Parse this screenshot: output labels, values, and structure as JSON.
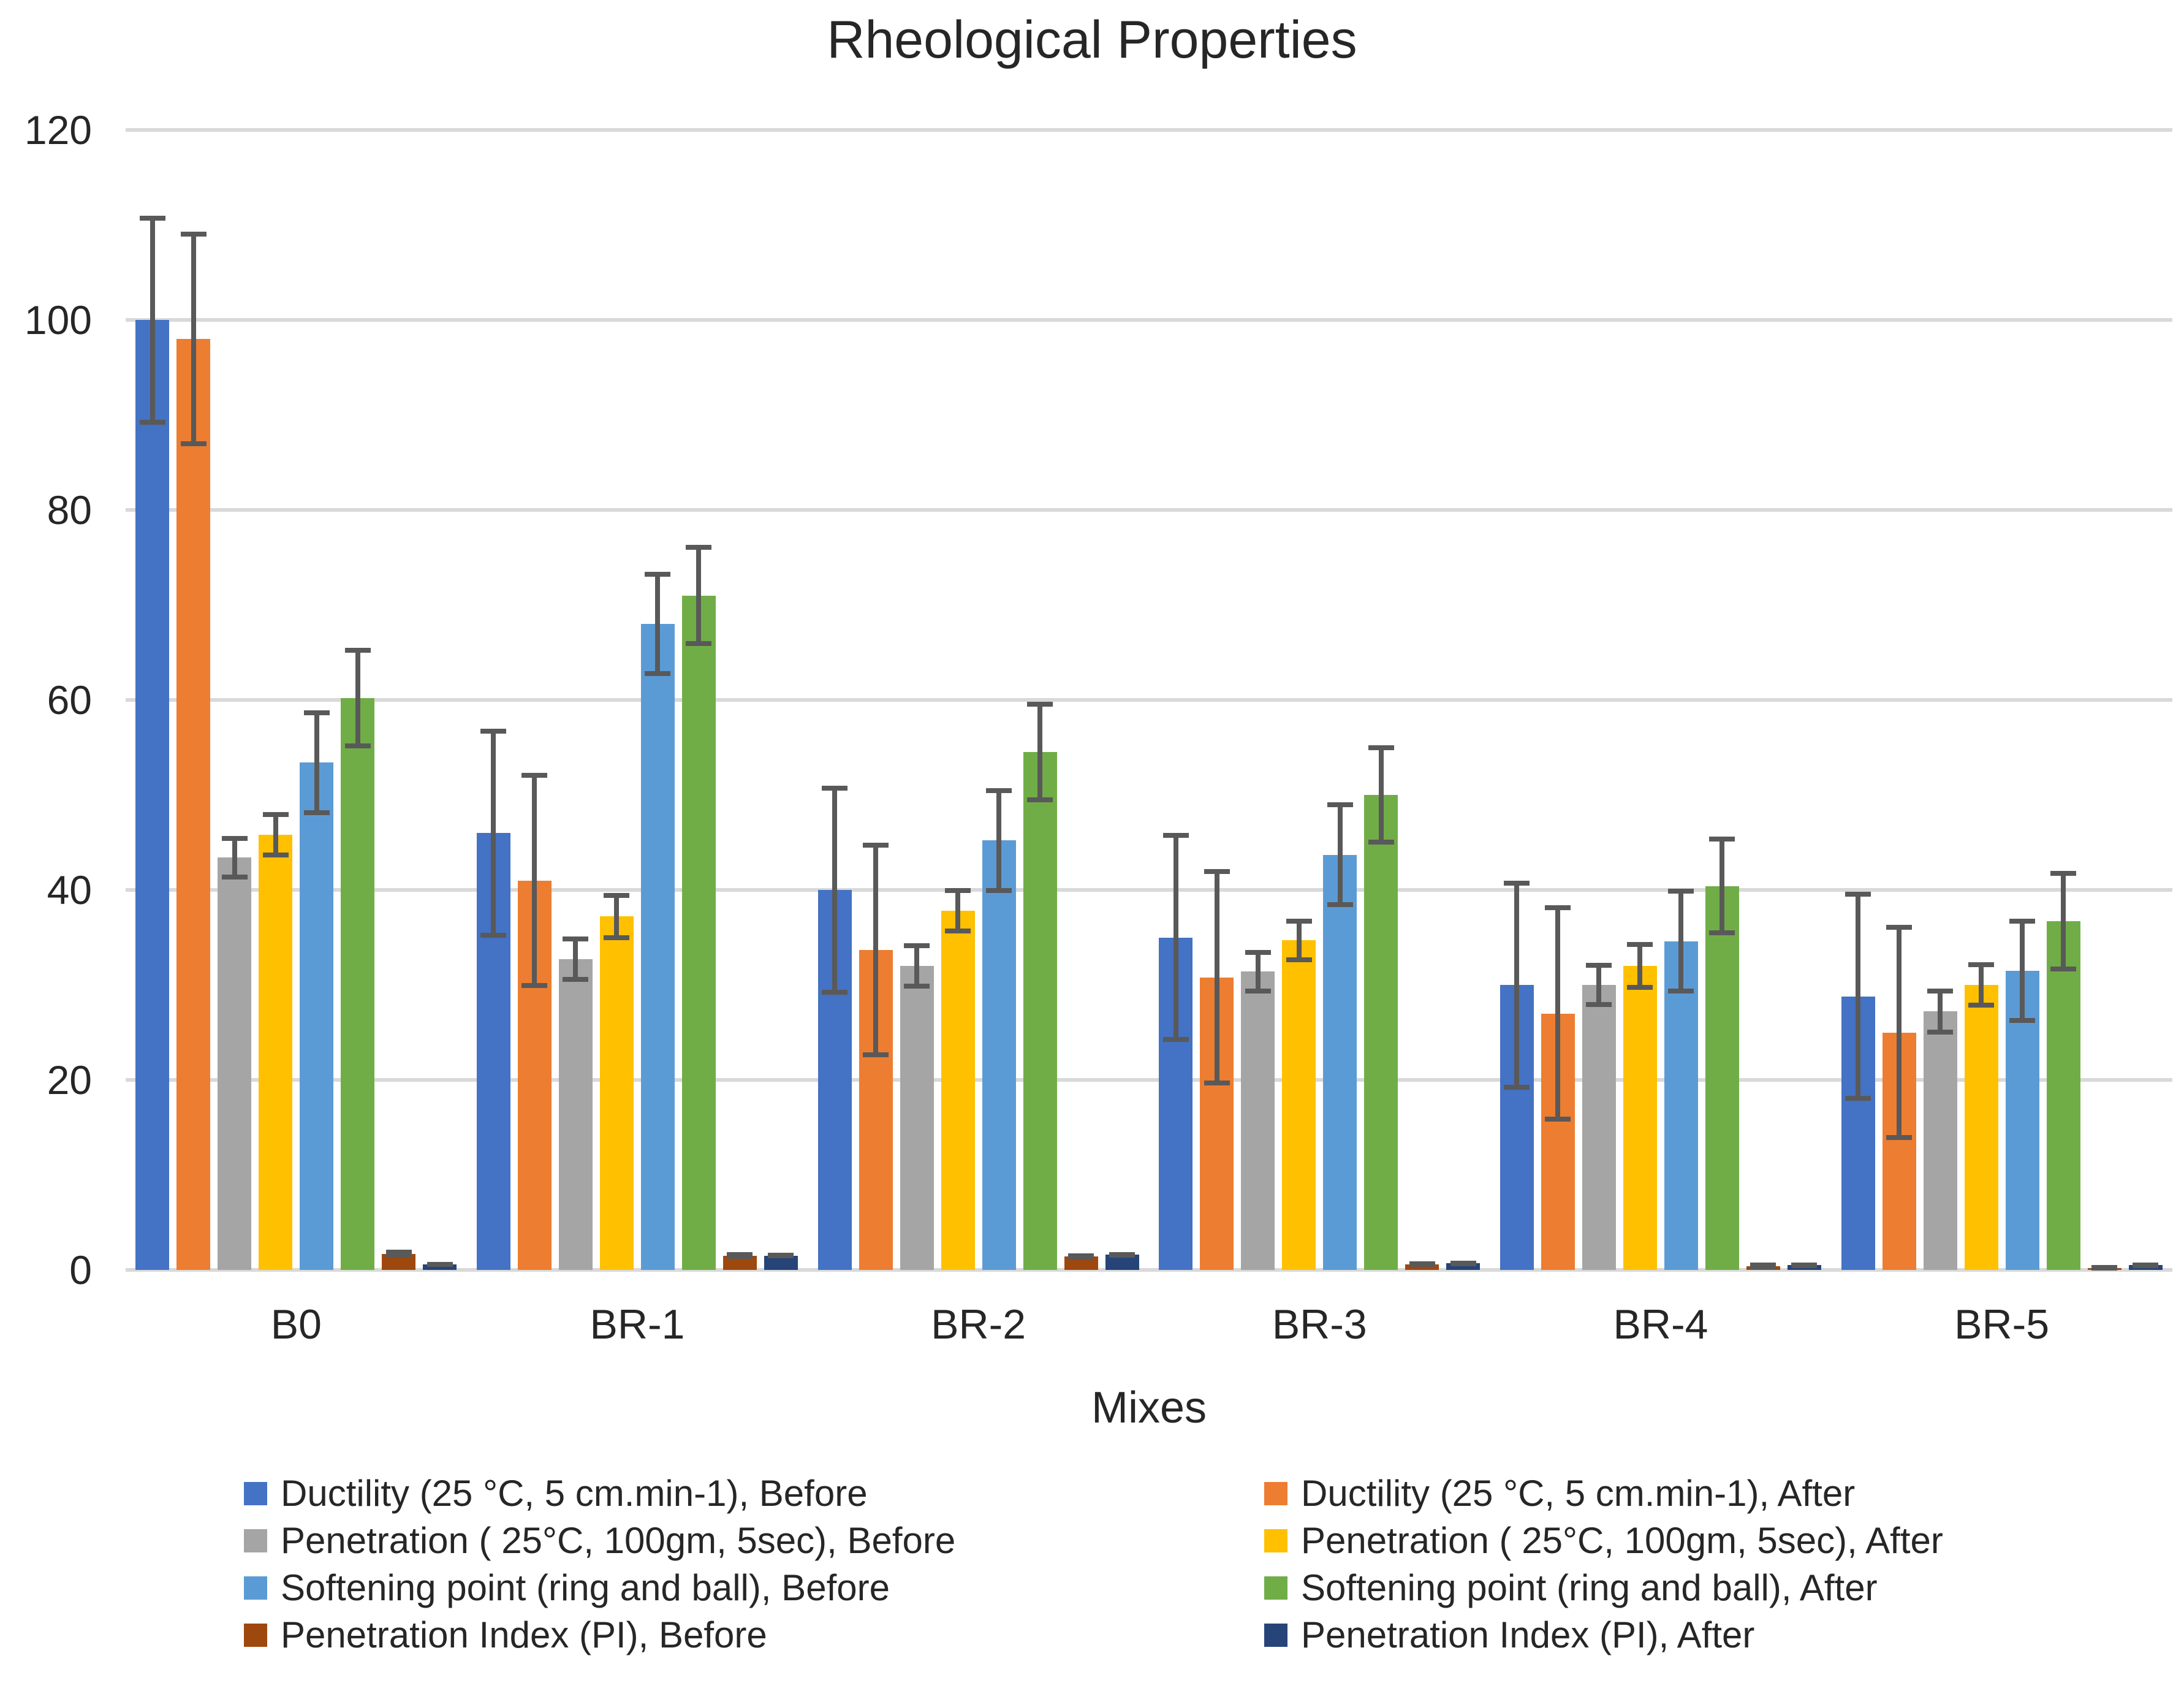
{
  "chart_data": {
    "type": "bar",
    "title": "Rheological Properties",
    "xlabel": "Mixes",
    "ylabel": "",
    "ylim": [
      0,
      120
    ],
    "yticks": [
      0,
      20,
      40,
      60,
      80,
      100,
      120
    ],
    "grid": true,
    "legend_position": "bottom-two-columns",
    "categories": [
      "B0",
      "BR-1",
      "BR-2",
      "BR-3",
      "BR-4",
      "BR-5"
    ],
    "series": [
      {
        "name": "Ductility (25 °C, 5 cm.min-1), Before",
        "color": "#4472C4",
        "values": [
          100,
          46,
          40,
          35,
          30,
          28.8
        ],
        "errors": [
          11,
          11,
          11,
          11,
          11,
          11
        ]
      },
      {
        "name": "Ductility (25 °C, 5 cm.min-1), After",
        "color": "#ED7D31",
        "values": [
          98,
          41,
          33.7,
          30.8,
          27,
          25
        ],
        "errors": [
          11.3,
          11.3,
          11.3,
          11.4,
          11.4,
          11.3
        ]
      },
      {
        "name": "Penetration ( 25°C, 100gm, 5sec), Before",
        "color": "#A5A5A5",
        "values": [
          43.4,
          32.7,
          32,
          31.4,
          30,
          27.2
        ],
        "errors": [
          2.3,
          2.4,
          2.4,
          2.3,
          2.3,
          2.4
        ]
      },
      {
        "name": "Penetration ( 25°C, 100gm, 5sec), After",
        "color": "#FFC000",
        "values": [
          45.8,
          37.2,
          37.8,
          34.7,
          32,
          30
        ],
        "errors": [
          2.4,
          2.5,
          2.4,
          2.3,
          2.5,
          2.4
        ]
      },
      {
        "name": "Softening point (ring and ball), Before",
        "color": "#5B9BD5",
        "values": [
          53.4,
          68,
          45.2,
          43.7,
          34.6,
          31.5
        ],
        "errors": [
          5.5,
          5.5,
          5.5,
          5.5,
          5.5,
          5.5
        ]
      },
      {
        "name": "Softening point (ring and ball), After",
        "color": "#70AD47",
        "values": [
          60.2,
          71,
          54.5,
          50,
          40.4,
          36.7
        ],
        "errors": [
          5.3,
          5.3,
          5.3,
          5.2,
          5.2,
          5.3
        ]
      },
      {
        "name": "Penetration Index  (PI), Before",
        "color": "#9E480E",
        "values": [
          1.7,
          1.5,
          1.4,
          0.6,
          0.4,
          0.2
        ],
        "errors": [
          0.4,
          0.35,
          0.35,
          0.3,
          0.35,
          0.25
        ]
      },
      {
        "name": "Penetration Index (PI), After",
        "color": "#264478",
        "values": [
          0.6,
          1.5,
          1.6,
          0.7,
          0.5,
          0.5
        ],
        "errors": [
          0.25,
          0.3,
          0.3,
          0.3,
          0.3,
          0.3
        ]
      }
    ],
    "style": {
      "gridline_color": "#D9D9D9",
      "error_bar_color": "#595959",
      "text_color": "#262626",
      "background": "#FFFFFF"
    }
  }
}
